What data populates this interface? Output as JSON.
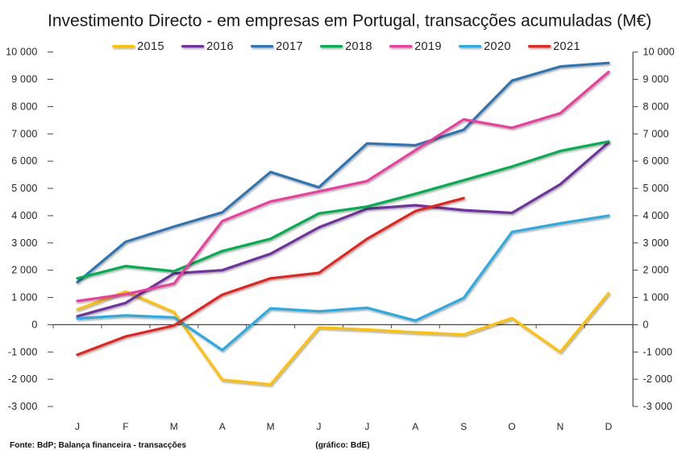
{
  "title": "Investimento Directo - em empresas em Portugal, transacções acumuladas (M€)",
  "footer_source": "Fonte: BdP; Balança financeira - transacções",
  "footer_note": "(gráfico: BdE)",
  "background_color": "#ffffff",
  "chart_data": {
    "type": "line",
    "title": "Investimento Directo - em empresas em Portugal, transacções acumuladas (M€)",
    "xlabel": "",
    "ylabel": "",
    "categories": [
      "J",
      "F",
      "M",
      "A",
      "M",
      "J",
      "J",
      "A",
      "S",
      "O",
      "N",
      "D"
    ],
    "ylim": [
      -3000,
      10000
    ],
    "ytick_interval": 1000,
    "grid": false,
    "legend_position": "top",
    "axis_label_format": "space-thousands",
    "series": [
      {
        "name": "2015",
        "color": "#FFC000",
        "values": [
          560,
          1220,
          460,
          -2020,
          -2190,
          -100,
          -180,
          -280,
          -360,
          240,
          -1000,
          1150
        ]
      },
      {
        "name": "2016",
        "color": "#7030A0",
        "values": [
          310,
          800,
          1880,
          2000,
          2600,
          3570,
          4250,
          4380,
          4200,
          4100,
          5150,
          6680
        ]
      },
      {
        "name": "2017",
        "color": "#2E75B6",
        "values": [
          1560,
          3040,
          3600,
          4120,
          5600,
          5040,
          6650,
          6580,
          7150,
          8950,
          9470,
          9600
        ]
      },
      {
        "name": "2018",
        "color": "#00B050",
        "values": [
          1700,
          2150,
          1960,
          2700,
          3150,
          4080,
          4330,
          4800,
          5300,
          5800,
          6370,
          6720
        ]
      },
      {
        "name": "2019",
        "color": "#EE3C9F",
        "values": [
          870,
          1120,
          1510,
          3800,
          4520,
          4890,
          5270,
          6400,
          7530,
          7220,
          7760,
          9270
        ]
      },
      {
        "name": "2020",
        "color": "#29ABE2",
        "values": [
          230,
          340,
          270,
          -930,
          600,
          490,
          620,
          150,
          980,
          3400,
          3720,
          4000
        ]
      },
      {
        "name": "2021",
        "color": "#E8211D",
        "values": [
          -1100,
          -430,
          -30,
          1100,
          1700,
          1900,
          3150,
          4170,
          4640,
          null,
          null,
          null
        ]
      }
    ]
  }
}
